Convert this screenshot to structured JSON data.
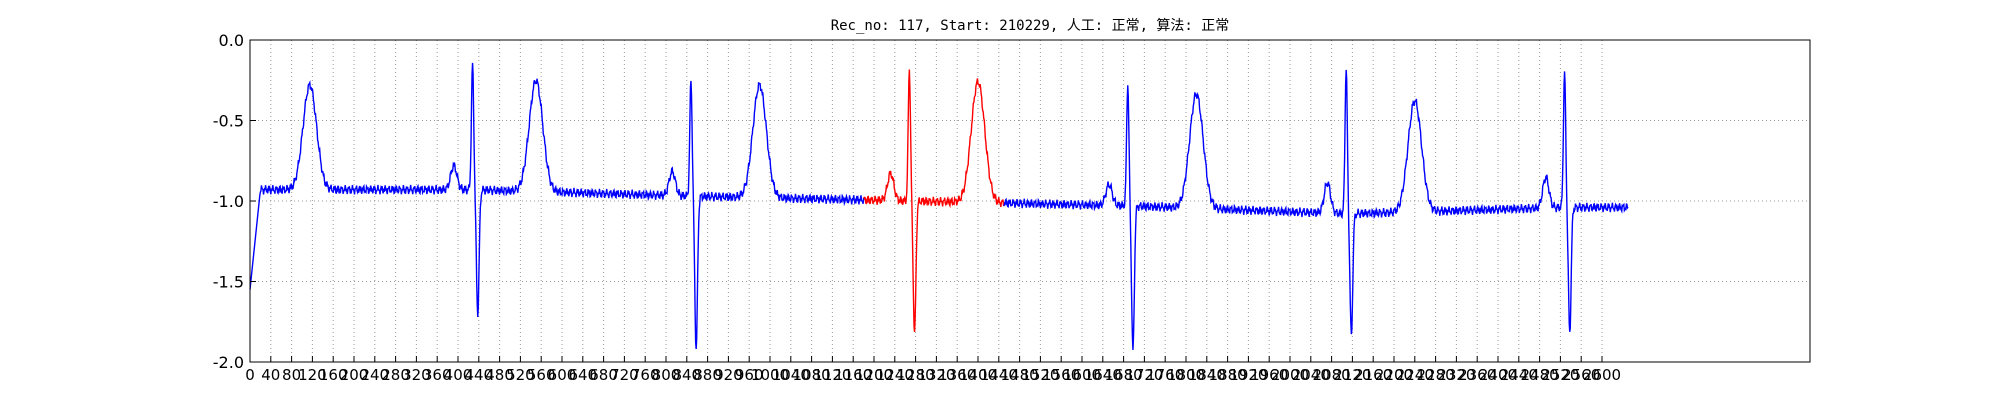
{
  "chart_data": {
    "type": "line",
    "title": "Rec_no: 117, Start: 210229, 人工: 正常, 算法: 正常",
    "xlabel": "",
    "ylabel": "",
    "xlim": [
      0,
      3000
    ],
    "ylim": [
      -2.0,
      0.0
    ],
    "grid": true,
    "x_ticks": [
      0,
      40,
      80,
      120,
      160,
      200,
      240,
      280,
      320,
      360,
      400,
      440,
      480,
      520,
      560,
      600,
      640,
      680,
      720,
      760,
      800,
      840,
      880,
      920,
      960,
      1000,
      1040,
      1080,
      1120,
      1160,
      1200,
      1240,
      1280,
      1320,
      1360,
      1400,
      1440,
      1480,
      1520,
      1560,
      1600,
      1640,
      1680,
      1720,
      1760,
      1800,
      1840,
      1880,
      1920,
      1960,
      2000,
      2040,
      2080,
      2120,
      2160,
      2200,
      2240,
      2280,
      2320,
      2360,
      2400,
      2440,
      2480,
      2520,
      2560,
      2600
    ],
    "x_tick_labels": [
      "0",
      "40",
      "80",
      "120",
      "160",
      "200",
      "240",
      "280",
      "320",
      "360",
      "400",
      "440",
      "480",
      "520",
      "560",
      "600",
      "640",
      "680",
      "720",
      "760",
      "800",
      "840",
      "880",
      "920",
      "960",
      "1000",
      "1040",
      "1080",
      "1120",
      "1160",
      "1200",
      "1240",
      "1280",
      "1320",
      "1360",
      "1400",
      "1440",
      "1480",
      "1520",
      "1560",
      "1600",
      "1640",
      "1680",
      "1720",
      "1760",
      "1800",
      "1840",
      "1880",
      "1920",
      "1960",
      "2000",
      "2040",
      "2080",
      "2120",
      "2160",
      "2200",
      "2240",
      "2280",
      "2320",
      "2360",
      "2400",
      "2440",
      "2480",
      "2520",
      "2560",
      "2600"
    ],
    "y_ticks": [
      0.0,
      -0.5,
      -1.0,
      -1.5,
      -2.0
    ],
    "y_tick_labels": [
      "0.0",
      "-0.5",
      "-1.0",
      "-1.5",
      "-2.0"
    ],
    "colors": {
      "normal": "#0000ff",
      "highlight": "#ff0000",
      "grid": "#9a9a9a"
    },
    "beats": [
      {
        "r": 430,
        "t": 115,
        "rAmp": -0.15,
        "sAmp": -1.7,
        "tAmp": -0.28,
        "pAmp": -0.78,
        "base": -0.93
      },
      {
        "r": 850,
        "t": 550,
        "rAmp": -0.25,
        "sAmp": -1.92,
        "tAmp": -0.28,
        "pAmp": -0.82,
        "base": -0.97
      },
      {
        "r": 1270,
        "t": 980,
        "rAmp": -0.18,
        "sAmp": -1.82,
        "tAmp": -0.3,
        "pAmp": -0.83,
        "base": -1.0
      },
      {
        "r": 1690,
        "t": 1400,
        "rAmp": -0.27,
        "sAmp": -1.93,
        "tAmp": -0.28,
        "pAmp": -0.9,
        "base": -1.03
      },
      {
        "r": 2110,
        "t": 1820,
        "rAmp": -0.17,
        "sAmp": -1.84,
        "tAmp": -0.37,
        "pAmp": -0.89,
        "base": -1.08
      },
      {
        "r": 2530,
        "t": 2240,
        "rAmp": -0.2,
        "sAmp": -1.82,
        "tAmp": -0.35,
        "pAmp": -0.85,
        "base": -1.04
      }
    ],
    "x_end": 2650,
    "highlight_range": [
      1180,
      1450
    ]
  }
}
